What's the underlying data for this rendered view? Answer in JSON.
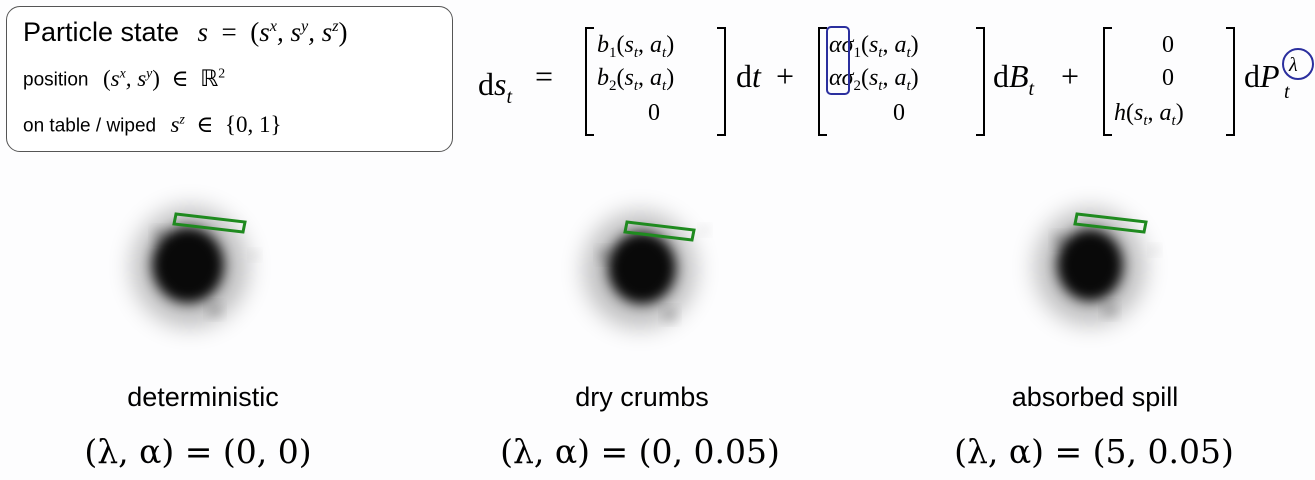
{
  "state_box": {
    "title": "Particle state",
    "title_math": "s  =  (s",
    "position_label": "position",
    "table_label": "on table / wiped"
  },
  "equation": {
    "lhs": "ds",
    "dt": "dt",
    "dB": "dB",
    "dP": "dP",
    "plus": "+",
    "eq": "=",
    "drift": [
      "b1(st, at)",
      "b2(st, at)",
      "0"
    ],
    "diffusion": [
      "ασ1(st, at)",
      "ασ2(st, at)",
      "0"
    ],
    "jump": [
      "0",
      "0",
      "h(st, at)"
    ],
    "jump_rate_symbol": "λ",
    "highlight_symbol": "α"
  },
  "panels": [
    {
      "title": "deterministic",
      "params": "(λ, α) = (0, 0)"
    },
    {
      "title": "dry crumbs",
      "params": "(λ, α) = (0, 0.05)"
    },
    {
      "title": "absorbed spill",
      "params": "(λ, α) = (5, 0.05)"
    }
  ],
  "colors": {
    "highlight": "#2b2f9e",
    "wiper": "#1f8a1f",
    "particles": "#000000",
    "box_border": "#555555"
  }
}
